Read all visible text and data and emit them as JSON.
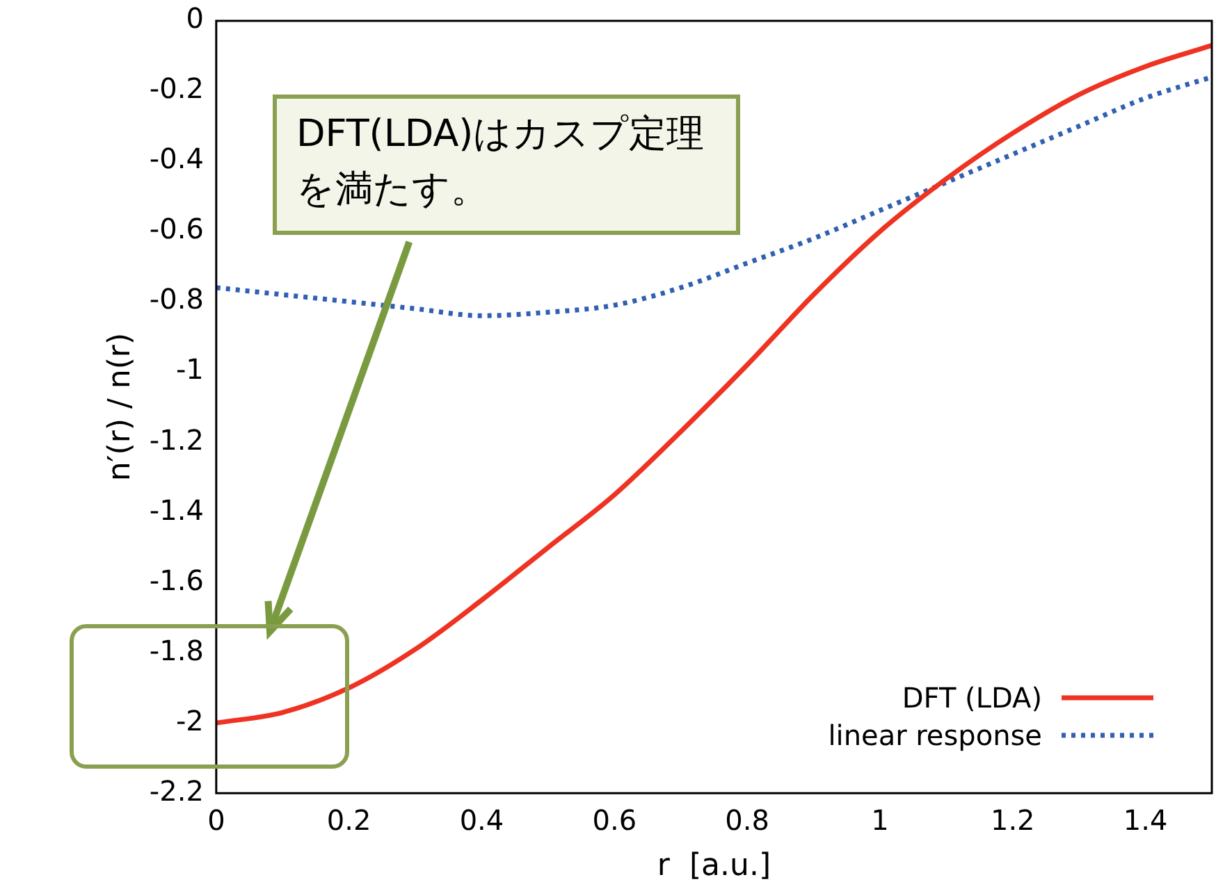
{
  "chart_data": {
    "type": "line",
    "xlabel": "r  [a.u.]",
    "ylabel": "n′(r) / n(r)",
    "annotations": [
      "DFT(LDA)はカスプ定理を満たす。"
    ],
    "x": [
      0,
      0.1,
      0.2,
      0.3,
      0.4,
      0.5,
      0.6,
      0.7,
      0.8,
      0.9,
      1.0,
      1.1,
      1.2,
      1.3,
      1.4,
      1.5
    ],
    "series": [
      {
        "name": "DFT (LDA)",
        "color": "#ee3322",
        "line_style": "solid",
        "values": [
          -2.0,
          -1.97,
          -1.9,
          -1.79,
          -1.65,
          -1.5,
          -1.35,
          -1.17,
          -0.98,
          -0.78,
          -0.6,
          -0.45,
          -0.32,
          -0.21,
          -0.13,
          -0.07
        ]
      },
      {
        "name": "linear response",
        "color": "#3060b0",
        "line_style": "dotted",
        "values": [
          -0.76,
          -0.78,
          -0.8,
          -0.82,
          -0.84,
          -0.83,
          -0.81,
          -0.76,
          -0.69,
          -0.62,
          -0.54,
          -0.46,
          -0.38,
          -0.3,
          -0.22,
          -0.16
        ]
      }
    ],
    "xlim": [
      0,
      1.5
    ],
    "xticks": [
      0,
      0.2,
      0.4,
      0.6,
      0.8,
      1,
      1.2,
      1.4
    ],
    "ylim": [
      -2.2,
      0
    ],
    "yticks": [
      -2.2,
      -2,
      -1.8,
      -1.6,
      -1.4,
      -1.2,
      -1,
      -0.8,
      -0.6,
      -0.4,
      -0.2,
      0
    ],
    "grid": false,
    "legend": "bottom right",
    "marker": "none"
  }
}
